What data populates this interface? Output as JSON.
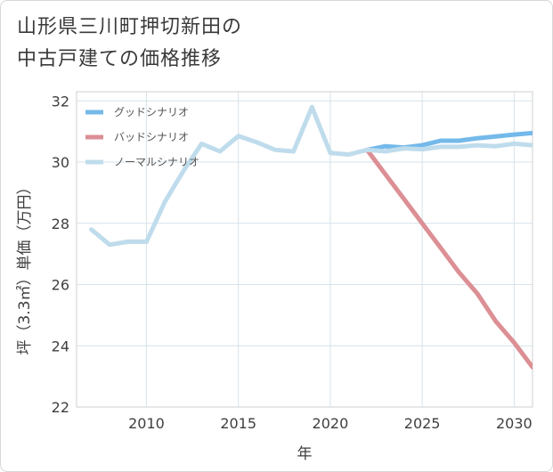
{
  "title_lines": [
    "山形県三川町押切新田の",
    "中古戸建ての価格推移"
  ],
  "chart_data": {
    "type": "line",
    "title": "山形県三川町押切新田の中古戸建ての価格推移",
    "xlabel": "年",
    "ylabel": "坪（3.3㎡）単価（万円）",
    "xlim": [
      2006.2,
      2031
    ],
    "ylim": [
      22,
      32.3
    ],
    "xticks": [
      2010,
      2015,
      2020,
      2025,
      2030
    ],
    "yticks": [
      22,
      24,
      26,
      28,
      30,
      32
    ],
    "grid": true,
    "legend_position": "top-left",
    "series": [
      {
        "name": "グッドシナリオ",
        "color": "#74b9ea",
        "x": [
          2022,
          2023,
          2024,
          2025,
          2026,
          2027,
          2028,
          2029,
          2030,
          2031
        ],
        "y": [
          30.4,
          30.52,
          30.48,
          30.55,
          30.7,
          30.7,
          30.78,
          30.84,
          30.9,
          30.95
        ]
      },
      {
        "name": "バッドシナリオ",
        "color": "#dc8f94",
        "x": [
          2022,
          2023,
          2024,
          2025,
          2026,
          2027,
          2028,
          2029,
          2030,
          2031
        ],
        "y": [
          30.4,
          29.6,
          28.8,
          28.0,
          27.2,
          26.4,
          25.7,
          24.8,
          24.1,
          23.3
        ]
      },
      {
        "name": "ノーマルシナリオ",
        "color": "#bfdcec",
        "x": [
          2007,
          2008,
          2009,
          2010,
          2011,
          2012,
          2013,
          2014,
          2015,
          2016,
          2017,
          2018,
          2019,
          2020,
          2021,
          2022,
          2023,
          2024,
          2025,
          2026,
          2027,
          2028,
          2029,
          2030,
          2031
        ],
        "y": [
          27.8,
          27.3,
          27.4,
          27.4,
          28.7,
          29.7,
          30.6,
          30.35,
          30.85,
          30.65,
          30.4,
          30.35,
          31.8,
          30.3,
          30.25,
          30.4,
          30.35,
          30.45,
          30.42,
          30.5,
          30.5,
          30.55,
          30.52,
          30.6,
          30.55
        ]
      }
    ]
  }
}
